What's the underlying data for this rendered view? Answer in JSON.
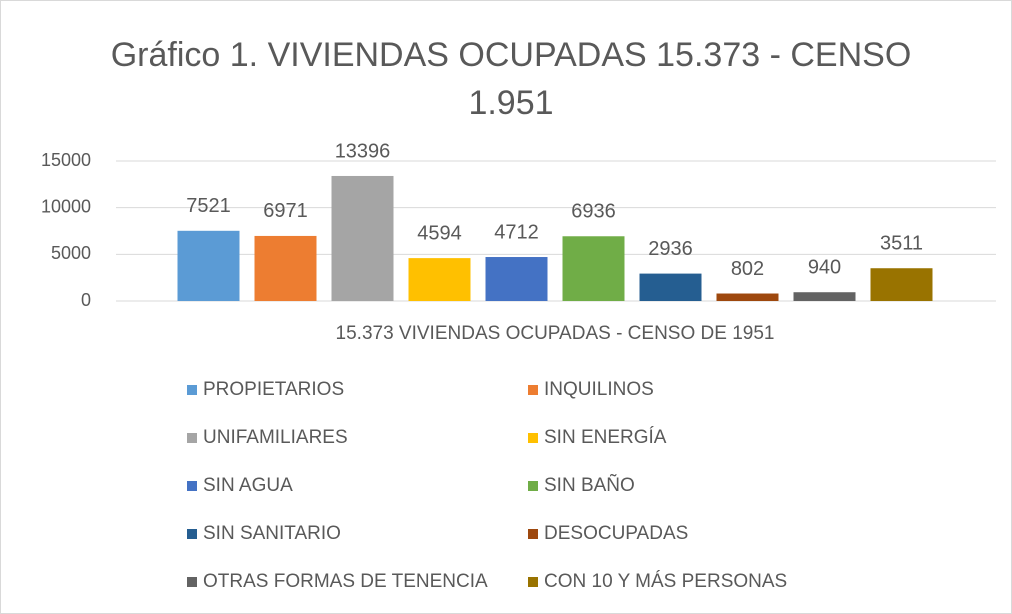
{
  "chart_data": {
    "type": "bar",
    "title": "Gráfico 1. VIVIENDAS OCUPADAS 15.373 - CENSO 1.951",
    "categories": [
      "15.373 VIVIENDAS OCUPADAS - CENSO DE 1951"
    ],
    "series": [
      {
        "name": "PROPIETARIOS",
        "color": "#5b9bd5",
        "values": [
          7521
        ]
      },
      {
        "name": "INQUILINOS",
        "color": "#ed7d31",
        "values": [
          6971
        ]
      },
      {
        "name": "UNIFAMILIARES",
        "color": "#a5a5a5",
        "values": [
          13396
        ]
      },
      {
        "name": "SIN ENERGÍA",
        "color": "#ffc000",
        "values": [
          4594
        ]
      },
      {
        "name": "SIN AGUA",
        "color": "#4472c4",
        "values": [
          4712
        ]
      },
      {
        "name": "SIN BAÑO",
        "color": "#70ad47",
        "values": [
          6936
        ]
      },
      {
        "name": "SIN SANITARIO",
        "color": "#255e91",
        "values": [
          2936
        ]
      },
      {
        "name": "DESOCUPADAS",
        "color": "#9e480e",
        "values": [
          802
        ]
      },
      {
        "name": "OTRAS FORMAS DE TENENCIA",
        "color": "#636363",
        "values": [
          940
        ]
      },
      {
        "name": "CON 10 Y MÁS PERSONAS",
        "color": "#997300",
        "values": [
          3511
        ]
      }
    ],
    "ylim": [
      0,
      15000
    ],
    "yticks": [
      0,
      5000,
      10000,
      15000
    ],
    "grid": true,
    "legend": "bottom"
  }
}
